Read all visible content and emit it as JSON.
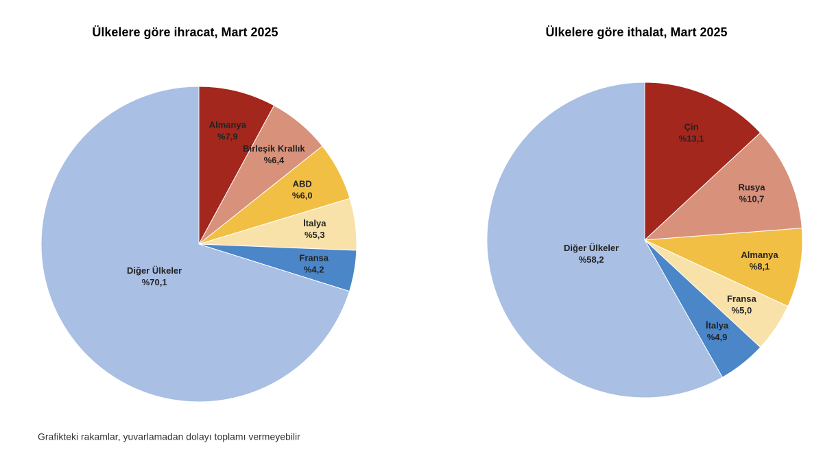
{
  "chart_data": [
    {
      "type": "pie",
      "title": "Ülkelere göre ihracat, Mart 2025",
      "categories": [
        "Almanya",
        "Birleşik Krallık",
        "ABD",
        "İtalya",
        "Fransa",
        "Diğer Ülkeler"
      ],
      "values": [
        7.9,
        6.4,
        6.0,
        5.3,
        4.2,
        70.1
      ],
      "value_labels": [
        "%7,9",
        "%6,4",
        "%6,0",
        "%5,3",
        "%4,2",
        "%70,1"
      ],
      "colors": [
        "#a3271d",
        "#d8917b",
        "#f2bf45",
        "#f9e2aa",
        "#4a86c8",
        "#a9bfe3"
      ]
    },
    {
      "type": "pie",
      "title": "Ülkelere göre ithalat, Mart 2025",
      "categories": [
        "Çin",
        "Rusya",
        "Almanya",
        "Fransa",
        "İtalya",
        "Diğer Ülkeler"
      ],
      "values": [
        13.1,
        10.7,
        8.1,
        5.0,
        4.9,
        58.2
      ],
      "value_labels": [
        "%13,1",
        "%10,7",
        "%8,1",
        "%5,0",
        "%4,9",
        "%58,2"
      ],
      "colors": [
        "#a3271d",
        "#d8917b",
        "#f2bf45",
        "#f9e2aa",
        "#4a86c8",
        "#a9bfe3"
      ]
    }
  ],
  "note": "Grafikteki rakamlar, yuvarlamadan dolayı toplamı vermeyebilir"
}
